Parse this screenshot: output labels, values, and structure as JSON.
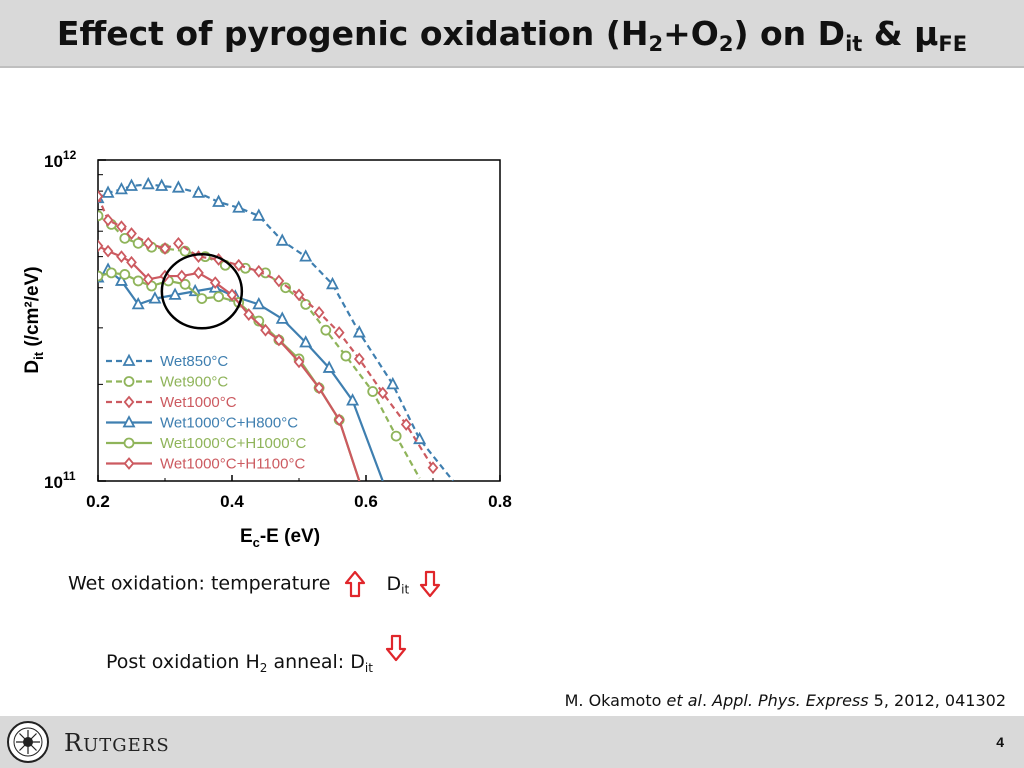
{
  "title": {
    "main": "Effect of pyrogenic oxidation (H",
    "sub1": "2",
    "plus": "+O",
    "sub2": "2",
    "on": ") on D",
    "sub3": "it",
    "amp": " & μ",
    "sub4": "FE"
  },
  "notes": {
    "wet_prefix": "Wet oxidation: temperature",
    "wet_d": "D",
    "wet_d_sub": "it",
    "post_prefix": "Post oxidation H",
    "post_h_sub": "2",
    "post_mid": " anneal: D",
    "post_d_sub": "it"
  },
  "citation": {
    "authors": "M. Okamoto ",
    "etal": "et al",
    "dot": ". ",
    "journal": "Appl. Phys. Express",
    "rest": " 5, 2012, 041302"
  },
  "footer": {
    "logo_r": "R",
    "logo_rest": "UTGERS",
    "page_number": "4"
  },
  "colors": {
    "blue": "#3f7fb0",
    "green": "#8fb45a",
    "red": "#cc5a60",
    "arrow": "#e0262b",
    "circle": "#000000"
  },
  "chart_data": {
    "type": "line",
    "x_axis": {
      "title_main": "E",
      "title_sub": "c",
      "title_rest": "-E (eV)",
      "range": [
        0.2,
        0.8
      ],
      "ticks": [
        "0.2",
        "0.4",
        "0.6",
        "0.8"
      ]
    },
    "y_axis": {
      "title_main": "D",
      "title_sub": "it",
      "title_rest": " (/cm²/eV)",
      "scale": "log",
      "range": [
        100000000000.0,
        1000000000000.0
      ],
      "tick_labels": [
        {
          "value": 100000000000.0,
          "base": "10",
          "exp": "11"
        },
        {
          "value": 1000000000000.0,
          "base": "10",
          "exp": "12"
        }
      ]
    },
    "legend_position": "bottom-left",
    "series": [
      {
        "name": "Wet850°C",
        "color": "blue",
        "dash": true,
        "marker": "triangle",
        "x": [
          0.2,
          0.215,
          0.235,
          0.25,
          0.275,
          0.295,
          0.32,
          0.35,
          0.38,
          0.41,
          0.44,
          0.475,
          0.51,
          0.55,
          0.59,
          0.64,
          0.68,
          0.73
        ],
        "y": [
          760000000000.0,
          790000000000.0,
          810000000000.0,
          830000000000.0,
          840000000000.0,
          830000000000.0,
          820000000000.0,
          790000000000.0,
          740000000000.0,
          710000000000.0,
          670000000000.0,
          560000000000.0,
          500000000000.0,
          410000000000.0,
          290000000000.0,
          200000000000.0,
          135000000000.0,
          100000000000.0
        ]
      },
      {
        "name": "Wet900°C",
        "color": "green",
        "dash": true,
        "marker": "circle",
        "x": [
          0.2,
          0.22,
          0.24,
          0.26,
          0.28,
          0.3,
          0.33,
          0.36,
          0.39,
          0.42,
          0.45,
          0.48,
          0.51,
          0.54,
          0.57,
          0.61,
          0.645,
          0.68
        ],
        "y": [
          670000000000.0,
          630000000000.0,
          570000000000.0,
          550000000000.0,
          535000000000.0,
          530000000000.0,
          520000000000.0,
          500000000000.0,
          470000000000.0,
          460000000000.0,
          445000000000.0,
          400000000000.0,
          355000000000.0,
          295000000000.0,
          245000000000.0,
          190000000000.0,
          138000000000.0,
          102000000000.0
        ]
      },
      {
        "name": "Wet1000°C",
        "color": "red",
        "dash": true,
        "marker": "diamond",
        "x": [
          0.2,
          0.215,
          0.235,
          0.25,
          0.275,
          0.3,
          0.32,
          0.35,
          0.38,
          0.41,
          0.44,
          0.47,
          0.5,
          0.53,
          0.56,
          0.59,
          0.625,
          0.66,
          0.7
        ],
        "y": [
          770000000000.0,
          650000000000.0,
          620000000000.0,
          590000000000.0,
          550000000000.0,
          530000000000.0,
          550000000000.0,
          500000000000.0,
          490000000000.0,
          470000000000.0,
          450000000000.0,
          420000000000.0,
          380000000000.0,
          335000000000.0,
          290000000000.0,
          240000000000.0,
          188000000000.0,
          150000000000.0,
          110000000000.0
        ]
      },
      {
        "name": "Wet1000°C+H800°C",
        "color": "blue",
        "dash": false,
        "marker": "triangle",
        "x": [
          0.2,
          0.215,
          0.235,
          0.26,
          0.285,
          0.315,
          0.345,
          0.375,
          0.405,
          0.44,
          0.475,
          0.51,
          0.545,
          0.58,
          0.625
        ],
        "y": [
          430000000000.0,
          455000000000.0,
          420000000000.0,
          355000000000.0,
          370000000000.0,
          380000000000.0,
          390000000000.0,
          400000000000.0,
          375000000000.0,
          355000000000.0,
          320000000000.0,
          270000000000.0,
          225000000000.0,
          178000000000.0,
          100000000000.0
        ]
      },
      {
        "name": "Wet1000°C+H1000°C",
        "color": "green",
        "dash": false,
        "marker": "circle",
        "x": [
          0.2,
          0.22,
          0.24,
          0.26,
          0.28,
          0.305,
          0.33,
          0.355,
          0.38,
          0.41,
          0.44,
          0.47,
          0.5,
          0.53,
          0.56,
          0.59
        ],
        "y": [
          435000000000.0,
          445000000000.0,
          440000000000.0,
          420000000000.0,
          405000000000.0,
          420000000000.0,
          410000000000.0,
          370000000000.0,
          375000000000.0,
          360000000000.0,
          315000000000.0,
          275000000000.0,
          240000000000.0,
          195000000000.0,
          155000000000.0,
          100000000000.0
        ]
      },
      {
        "name": "Wet1000°C+H1100°C",
        "color": "red",
        "dash": false,
        "marker": "diamond",
        "x": [
          0.2,
          0.215,
          0.235,
          0.25,
          0.275,
          0.3,
          0.325,
          0.35,
          0.375,
          0.4,
          0.425,
          0.45,
          0.47,
          0.5,
          0.53,
          0.56,
          0.59
        ],
        "y": [
          540000000000.0,
          520000000000.0,
          500000000000.0,
          480000000000.0,
          425000000000.0,
          435000000000.0,
          435000000000.0,
          445000000000.0,
          415000000000.0,
          380000000000.0,
          330000000000.0,
          295000000000.0,
          275000000000.0,
          235000000000.0,
          195000000000.0,
          155000000000.0,
          100000000000.0
        ]
      }
    ],
    "annotation": {
      "shape": "circle",
      "center": [
        0.355,
        390000000000.0
      ]
    }
  }
}
